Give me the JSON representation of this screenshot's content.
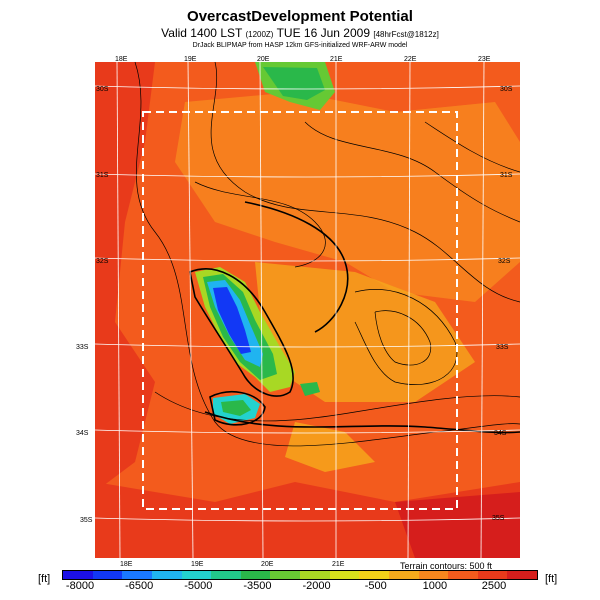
{
  "header": {
    "title": "OvercastDevelopment Potential",
    "valid_prefix": "Valid 1400 LST",
    "valid_utc": "(1200Z)",
    "valid_date": "TUE 16 Jun 2009",
    "forecast_tag": "[48hrFcst@1812z]",
    "credit": "DrJack BLIPMAP from HASP 12km GFS-initialized WRF-ARW model"
  },
  "map": {
    "lon_labels_top": [
      "18E",
      "19E",
      "20E",
      "21E",
      "22E",
      "23E"
    ],
    "lon_labels_bottom": [
      "18E",
      "19E",
      "20E",
      "21E"
    ],
    "lat_labels_left": [
      "30S",
      "31S",
      "32S",
      "33S",
      "34S",
      "35S"
    ],
    "lat_labels_right": [
      "30S",
      "31S",
      "32S",
      "33S",
      "34S",
      "35S"
    ],
    "terrain_note": "Terrain contours: 500 ft"
  },
  "colorbar": {
    "unit_left": "[ft]",
    "unit_right": "[ft]",
    "tick_labels": [
      "-8000",
      "-6500",
      "-5000",
      "-3500",
      "-2000",
      "-500",
      "1000",
      "2500"
    ],
    "colors": [
      "#1c10e6",
      "#1238f5",
      "#1a78ff",
      "#20b4f0",
      "#23d2cf",
      "#22c98a",
      "#2ab84a",
      "#66c934",
      "#a8d824",
      "#d8e01c",
      "#f3d219",
      "#f6aa1c",
      "#f7861e",
      "#f35b1d",
      "#e83a1b",
      "#d61e1c"
    ]
  }
}
